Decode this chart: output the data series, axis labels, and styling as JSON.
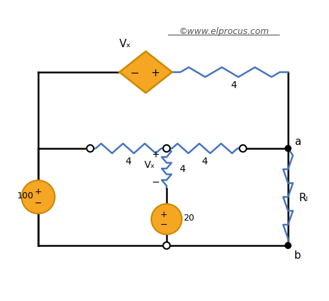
{
  "bg_color": "#ffffff",
  "wire_color_black": "#000000",
  "wire_color_blue": "#4472c4",
  "source_fill": "#f5a623",
  "source_edge": "#cc8800",
  "diamond_fill": "#f5a623",
  "diamond_edge": "#cc8800",
  "dot_color": "#000000",
  "open_node_color": "#ffffff",
  "open_node_edge": "#000000",
  "text_color": "#000000",
  "watermark_color": "#555555",
  "watermark_text": "©www.elprocus.com",
  "label_vx_top": "Vₓ",
  "label_100": "100",
  "label_20": "20",
  "label_4_top": "4",
  "label_4_left": "4",
  "label_4_mid": "4",
  "label_4_right": "4",
  "label_RL": "Rₗ",
  "label_a": "a",
  "label_b": "b",
  "label_plus": "+",
  "label_minus": "−",
  "label_vx_mid": "Vₓ"
}
